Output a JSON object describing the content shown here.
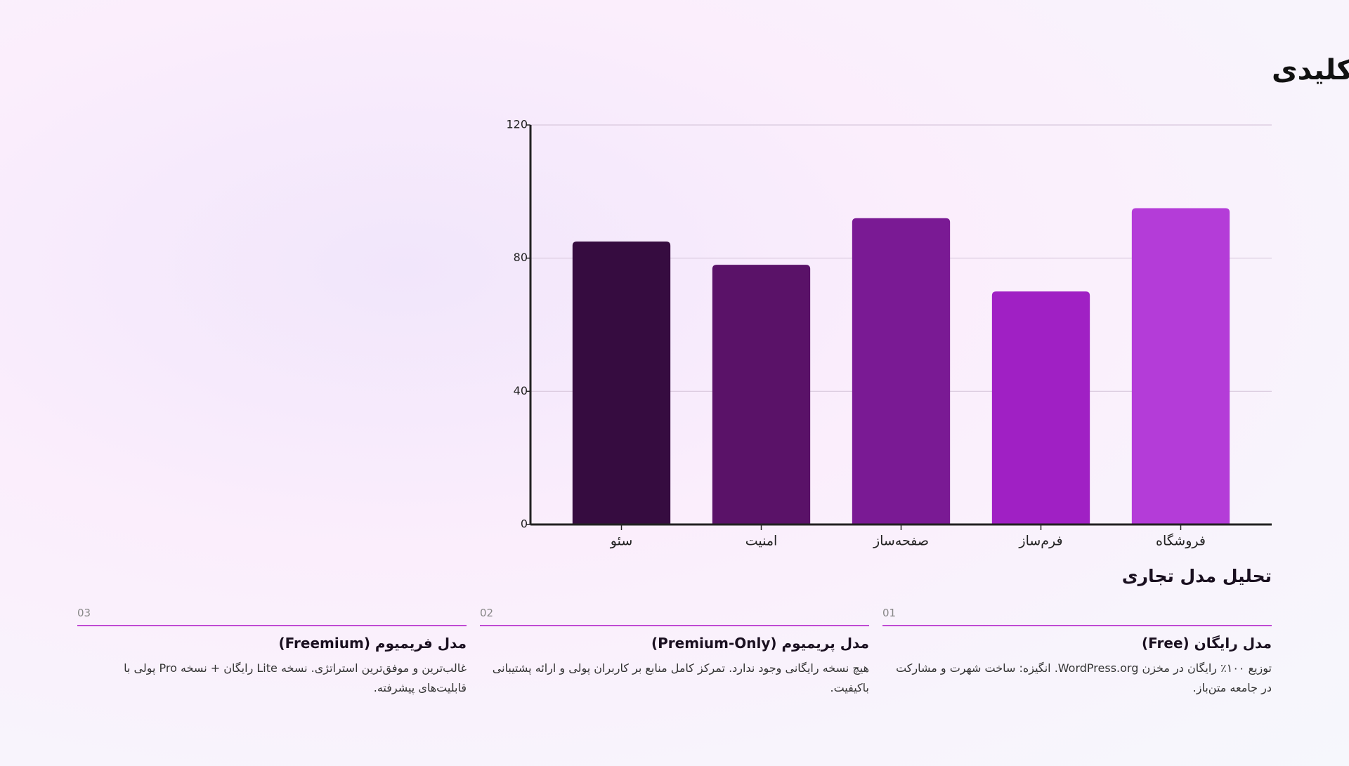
{
  "chart_data": {
    "type": "bar",
    "title": "نقشه بازار افزونه‌های کلیدی",
    "categories": [
      "سئو",
      "امنیت",
      "صفحه‌ساز",
      "فرم‌ساز",
      "فروشگاه"
    ],
    "values": [
      85,
      78,
      92,
      70,
      95
    ],
    "colors": [
      "#360c40",
      "#5a1268",
      "#7a1a94",
      "#a020c4",
      "#b43cd8"
    ],
    "ylim": [
      0,
      120
    ],
    "yticks": [
      0,
      40,
      80,
      120
    ],
    "grid": true
  },
  "section": {
    "title": "تحلیل مدل تجاری",
    "cards": [
      {
        "number": "01",
        "title": "مدل رایگان (Free)",
        "description": "توزیع ۱۰۰٪ رایگان در مخزن WordPress.org. انگیزه: ساخت شهرت و مشارکت در جامعه متن‌باز."
      },
      {
        "number": "02",
        "title": "مدل پریمیوم (Premium-Only)",
        "description": "هیچ نسخه رایگانی وجود ندارد. تمرکز کامل منابع بر کاربران پولی و ارائه پشتیبانی باکیفیت."
      },
      {
        "number": "03",
        "title": "مدل فریمیوم (Freemium)",
        "description": "غالب‌ترین و موفق‌ترین استراتژی. نسخه Lite رایگان + نسخه Pro پولی با قابلیت‌های پیشرفته."
      }
    ]
  }
}
